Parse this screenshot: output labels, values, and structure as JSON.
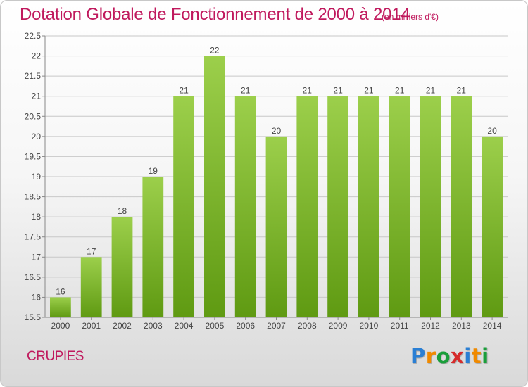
{
  "title": "Dotation Globale de Fonctionnement de 2000 à 2014",
  "unit_note": "(en milliers d'€)",
  "commune": "CRUPIES",
  "logo": {
    "text": "Proxiti",
    "letters": [
      "P",
      "r",
      "o",
      "x",
      "i",
      "t",
      "i"
    ],
    "colors": [
      "#2a7fd4",
      "#f08a00",
      "#1a9e3a",
      "#d62b2b",
      "#2a7fd4",
      "#f08a00",
      "#1a9e3a"
    ]
  },
  "colors": {
    "bar_top": "#9ccf4b",
    "bar_bottom": "#5f9a12",
    "title": "#c0195d",
    "grid": "#c8c8c8"
  },
  "chart_data": {
    "type": "bar",
    "categories": [
      "2000",
      "2001",
      "2002",
      "2003",
      "2004",
      "2005",
      "2006",
      "2007",
      "2008",
      "2009",
      "2010",
      "2011",
      "2012",
      "2013",
      "2014"
    ],
    "values": [
      16,
      17,
      18,
      19,
      21,
      22,
      21,
      20,
      21,
      21,
      21,
      21,
      21,
      21,
      20
    ],
    "labels": [
      "16",
      "17",
      "18",
      "19",
      "21",
      "22",
      "21",
      "20",
      "21",
      "21",
      "21",
      "21",
      "21",
      "21",
      "20"
    ],
    "ylim": [
      15.5,
      22.5
    ],
    "yticks": [
      "15.5",
      "16",
      "16.5",
      "17",
      "17.5",
      "18",
      "18.5",
      "19",
      "19.5",
      "20",
      "20.5",
      "21",
      "21.5",
      "22",
      "22.5"
    ],
    "grid": true,
    "xlabel": "",
    "ylabel": ""
  }
}
